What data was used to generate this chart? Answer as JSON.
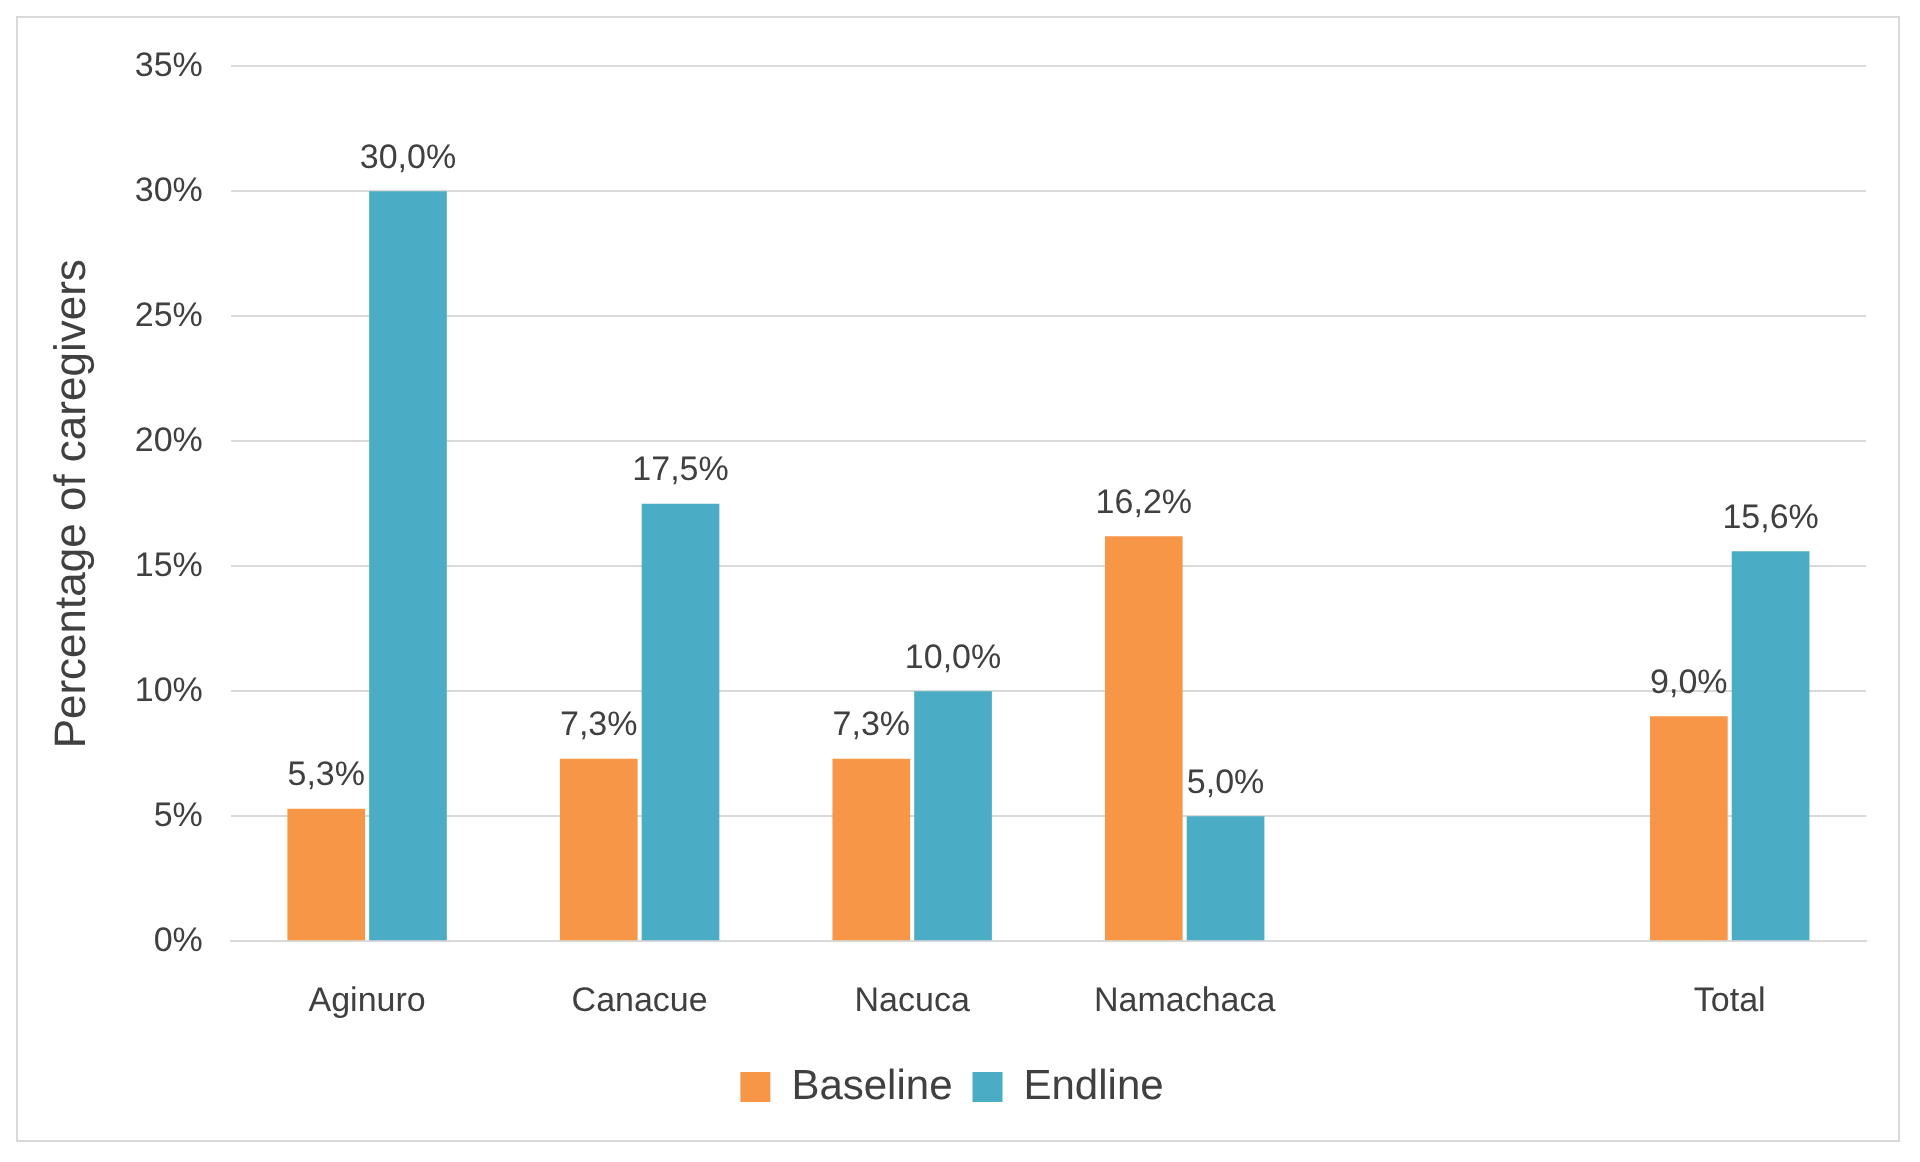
{
  "chart_data": {
    "type": "bar",
    "ylabel": "Percentage of caregivers",
    "categories": [
      "Aginuro",
      "Canacue",
      "Nacuca",
      "Namachaca",
      null,
      "Total"
    ],
    "series": [
      {
        "name": "Baseline",
        "color": "#f79646",
        "values": [
          5.3,
          7.3,
          7.3,
          16.2,
          null,
          9.0
        ],
        "value_labels": [
          "5,3%",
          "7,3%",
          "7,3%",
          "16,2%",
          null,
          "9,0%"
        ]
      },
      {
        "name": "Endline",
        "color": "#4bacc6",
        "values": [
          30.0,
          17.5,
          10.0,
          5.0,
          null,
          15.6
        ],
        "value_labels": [
          "30,0%",
          "17,5%",
          "10,0%",
          "5,0%",
          null,
          "15,6%"
        ]
      }
    ],
    "ylim": [
      0,
      35
    ],
    "yticks": [
      {
        "value": 0,
        "label": "0%"
      },
      {
        "value": 5,
        "label": "5%"
      },
      {
        "value": 10,
        "label": "10%"
      },
      {
        "value": 15,
        "label": "15%"
      },
      {
        "value": 20,
        "label": "20%"
      },
      {
        "value": 25,
        "label": "25%"
      },
      {
        "value": 30,
        "label": "30%"
      },
      {
        "value": 35,
        "label": "35%"
      }
    ],
    "grid": "y",
    "legend": "bottom"
  }
}
